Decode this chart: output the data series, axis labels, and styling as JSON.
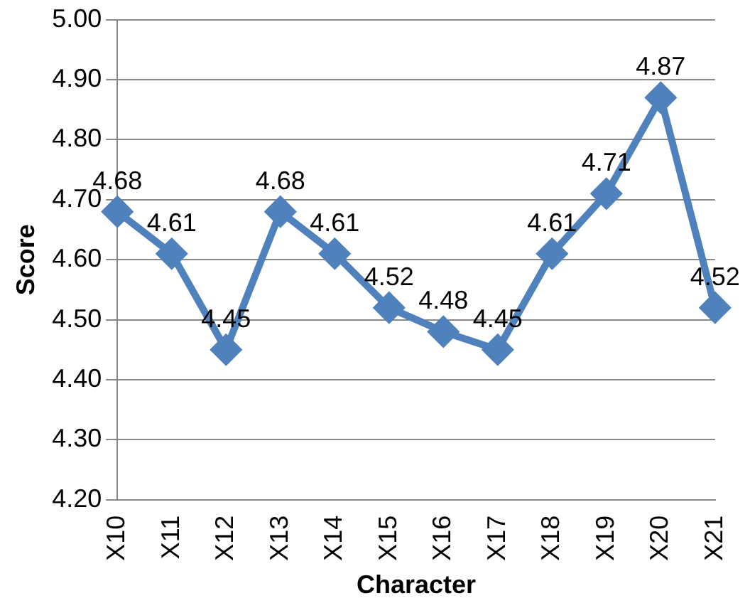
{
  "chart_data": {
    "type": "line",
    "xlabel": "Character",
    "ylabel": "Score",
    "categories": [
      "X10",
      "X11",
      "X12",
      "X13",
      "X14",
      "X15",
      "X16",
      "X17",
      "X18",
      "X19",
      "X20",
      "X21"
    ],
    "series": [
      {
        "color": "#4f81bd",
        "values": [
          4.68,
          4.61,
          4.45,
          4.68,
          4.61,
          4.52,
          4.48,
          4.45,
          4.61,
          4.71,
          4.87,
          4.52
        ]
      }
    ],
    "ylim": [
      4.2,
      5.0
    ],
    "yticks": [
      {
        "value": 4.2,
        "label": "4.20"
      },
      {
        "value": 4.3,
        "label": "4.30"
      },
      {
        "value": 4.4,
        "label": "4.40"
      },
      {
        "value": 4.5,
        "label": "4.50"
      },
      {
        "value": 4.6,
        "label": "4.60"
      },
      {
        "value": 4.7,
        "label": "4.70"
      },
      {
        "value": 4.8,
        "label": "4.80"
      },
      {
        "value": 4.9,
        "label": "4.90"
      },
      {
        "value": 5.0,
        "label": "5.00"
      }
    ],
    "grid": "y",
    "marker": "diamond",
    "line_style": "solid",
    "data_labels": true,
    "legend": false
  }
}
